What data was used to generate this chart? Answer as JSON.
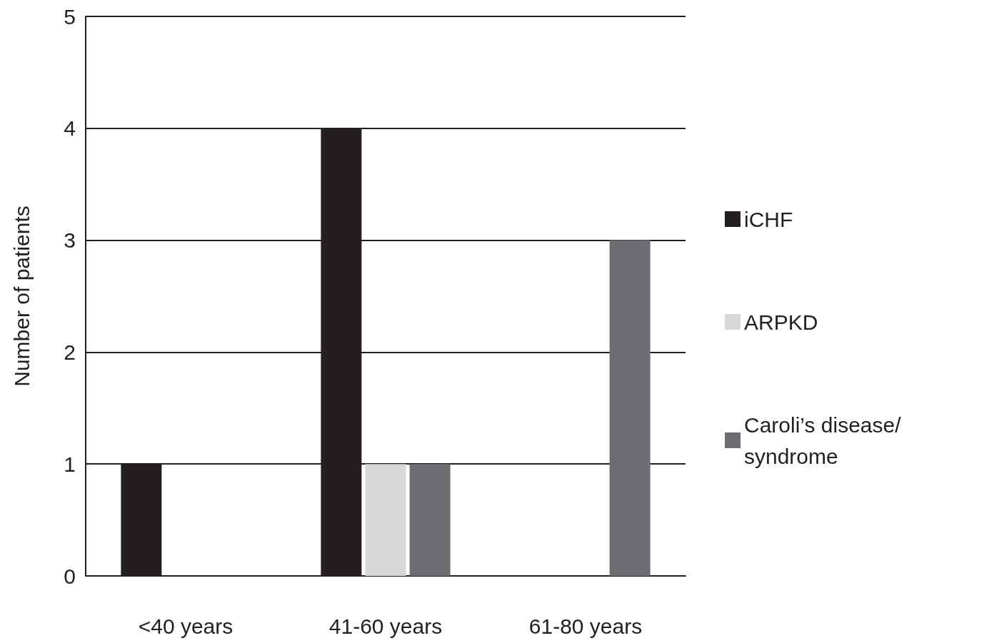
{
  "chart_data": {
    "type": "bar",
    "ylabel": "Number of patients",
    "categories": [
      "<40 years",
      "41-60 years",
      "61-80 years"
    ],
    "series": [
      {
        "name": "iCHF",
        "color": "#231f20",
        "values": [
          1,
          4,
          0
        ]
      },
      {
        "name": "ARPKD",
        "color": "#d6d7d9",
        "values": [
          0,
          1,
          0
        ]
      },
      {
        "name": "Caroli’s disease/syndrome",
        "color": "#6d6e71",
        "values": [
          0,
          1,
          3
        ]
      }
    ],
    "ylim": [
      0,
      5
    ],
    "yticks": [
      0,
      1,
      2,
      3,
      4,
      5
    ],
    "grid": "y",
    "legend": "right"
  }
}
